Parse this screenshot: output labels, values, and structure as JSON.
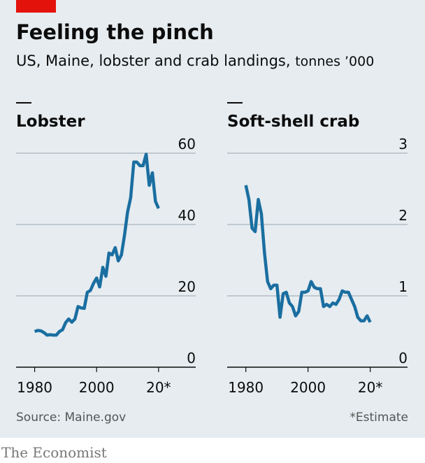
{
  "title": "Feeling the pinch",
  "subtitle": "US, Maine, lobster and crab landings,",
  "unit": "tonnes ’000",
  "source": "Source: Maine.gov",
  "note": "*Estimate",
  "brand": "The Economist",
  "chart_data": [
    {
      "type": "line",
      "title": "Lobster",
      "x": [
        1980,
        1981,
        1982,
        1983,
        1984,
        1985,
        1986,
        1987,
        1988,
        1989,
        1990,
        1991,
        1992,
        1993,
        1994,
        1995,
        1996,
        1997,
        1998,
        1999,
        2000,
        2001,
        2002,
        2003,
        2004,
        2005,
        2006,
        2007,
        2008,
        2009,
        2010,
        2011,
        2012,
        2013,
        2014,
        2015,
        2016,
        2017,
        2018,
        2019,
        2020
      ],
      "values": [
        10,
        10.3,
        10.2,
        9.7,
        9,
        9.1,
        9,
        9,
        10,
        10.5,
        12.5,
        13.5,
        12.6,
        13.5,
        17,
        16.6,
        16.5,
        21,
        21.5,
        23.5,
        25,
        22.5,
        28,
        25.5,
        32,
        31.5,
        33.5,
        29.8,
        31.5,
        37,
        43.5,
        47.5,
        57.5,
        57.5,
        56.5,
        56.5,
        59.7,
        51,
        54.5,
        46.5,
        44.5
      ],
      "color": "#1a6ea0",
      "xlim": [
        1974,
        2032
      ],
      "xticks": [
        1980,
        2000,
        {
          "value": 2020,
          "label": "20*"
        }
      ],
      "ylim": [
        0,
        60
      ],
      "yticks": [
        0,
        20,
        40,
        60
      ],
      "grid": true
    },
    {
      "type": "line",
      "title": "Soft-shell crab",
      "x": [
        1980,
        1981,
        1982,
        1983,
        1984,
        1985,
        1986,
        1987,
        1988,
        1989,
        1990,
        1991,
        1992,
        1993,
        1994,
        1995,
        1996,
        1997,
        1998,
        1999,
        2000,
        2001,
        2002,
        2003,
        2004,
        2005,
        2006,
        2007,
        2008,
        2009,
        2010,
        2011,
        2012,
        2013,
        2014,
        2015,
        2016,
        2017,
        2018,
        2019,
        2020
      ],
      "values": [
        2.55,
        2.35,
        1.95,
        1.9,
        2.35,
        2.15,
        1.6,
        1.2,
        1.1,
        1.15,
        1.15,
        0.7,
        1.03,
        1.05,
        0.9,
        0.85,
        0.72,
        0.78,
        1.05,
        1.05,
        1.07,
        1.2,
        1.12,
        1.1,
        1.1,
        0.85,
        0.88,
        0.85,
        0.9,
        0.88,
        0.95,
        1.07,
        1.05,
        1.05,
        0.95,
        0.85,
        0.7,
        0.65,
        0.65,
        0.72,
        0.63
      ],
      "color": "#1a6ea0",
      "xlim": [
        1974,
        2032
      ],
      "xticks": [
        1980,
        2000,
        {
          "value": 2020,
          "label": "20*"
        }
      ],
      "ylim": [
        0,
        3
      ],
      "yticks": [
        0,
        1,
        2,
        3
      ],
      "grid": true
    }
  ]
}
